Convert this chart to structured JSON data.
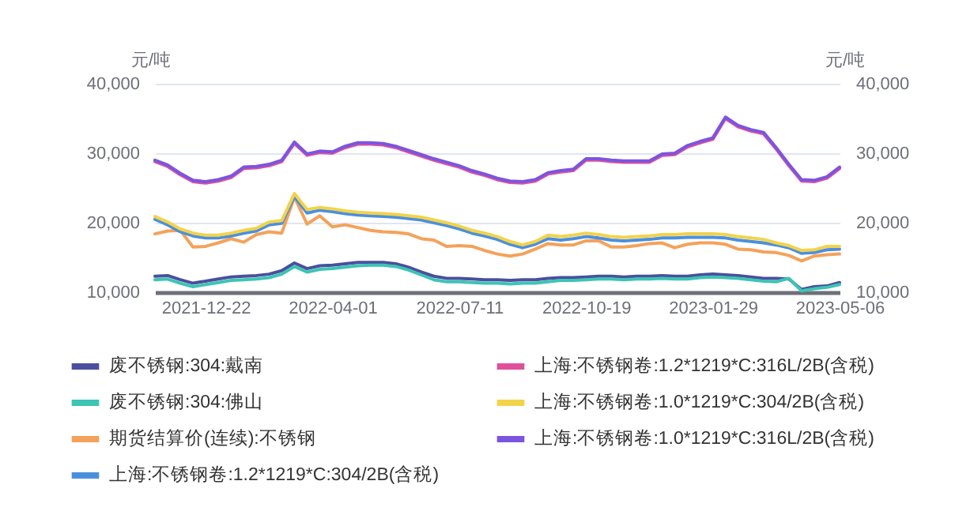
{
  "chart_data": {
    "type": "line",
    "categories": [
      null,
      null,
      null,
      null,
      "2021-12-22",
      null,
      null,
      null,
      null,
      null,
      null,
      null,
      null,
      null,
      "2022-04-01",
      null,
      null,
      null,
      null,
      null,
      null,
      null,
      null,
      null,
      "2022-07-11",
      null,
      null,
      null,
      null,
      null,
      null,
      null,
      null,
      null,
      "2022-10-19",
      null,
      null,
      null,
      null,
      null,
      null,
      null,
      null,
      null,
      "2023-01-29",
      null,
      null,
      null,
      null,
      null,
      null,
      null,
      null,
      null,
      "2023-05-06"
    ],
    "ylabel": "元/吨",
    "y2label": "元/吨",
    "ylim": [
      10000,
      40000
    ],
    "yticks": [
      {
        "value": 10000,
        "label": "10,000"
      },
      {
        "value": 20000,
        "label": "20,000"
      },
      {
        "value": 30000,
        "label": "30,000"
      },
      {
        "value": 40000,
        "label": "40,000"
      }
    ],
    "y2lim": [
      10000,
      40000
    ],
    "y2ticks": [
      {
        "value": 10000,
        "label": "10,000"
      },
      {
        "value": 20000,
        "label": "20,000"
      },
      {
        "value": 30000,
        "label": "30,000"
      },
      {
        "value": 40000,
        "label": "40,000"
      }
    ],
    "grid": "y",
    "legend": "bottom",
    "series": [
      {
        "name": "废不锈钢:304:戴南",
        "color": "#4a4f9e",
        "values": [
          12300,
          12400,
          11800,
          11300,
          11600,
          11900,
          12200,
          12300,
          12400,
          12600,
          13100,
          14200,
          13400,
          13800,
          13900,
          14100,
          14300,
          14300,
          14300,
          14100,
          13600,
          12900,
          12300,
          12000,
          12000,
          11900,
          11800,
          11800,
          11700,
          11800,
          11800,
          12000,
          12100,
          12100,
          12200,
          12300,
          12300,
          12200,
          12300,
          12300,
          12400,
          12300,
          12300,
          12500,
          12600,
          12500,
          12400,
          12200,
          12000,
          12000,
          11900,
          10400,
          10800,
          10900,
          11400
        ]
      },
      {
        "name": "废不锈钢:304:佛山",
        "color": "#3cc4b4",
        "values": [
          11800,
          11900,
          11300,
          10800,
          11100,
          11400,
          11700,
          11800,
          11900,
          12100,
          12600,
          13700,
          12900,
          13300,
          13400,
          13600,
          13800,
          13900,
          13900,
          13700,
          13200,
          12500,
          11800,
          11500,
          11500,
          11400,
          11300,
          11300,
          11200,
          11300,
          11300,
          11500,
          11700,
          11700,
          11800,
          11900,
          11900,
          11800,
          11900,
          11900,
          12000,
          11900,
          11900,
          12100,
          12200,
          12100,
          12000,
          11800,
          11600,
          11500,
          12000,
          10200,
          10500,
          10700,
          11100
        ]
      },
      {
        "name": "期货结算价(连续):不锈钢",
        "color": "#f4a25a",
        "values": [
          18400,
          18800,
          18900,
          16500,
          16600,
          17100,
          17700,
          17200,
          18300,
          18700,
          18500,
          23700,
          19800,
          21000,
          19400,
          19700,
          19300,
          18900,
          18700,
          18600,
          18400,
          17700,
          17500,
          16600,
          16700,
          16600,
          16000,
          15500,
          15200,
          15500,
          16200,
          17000,
          16800,
          16800,
          17400,
          17400,
          16500,
          16500,
          16700,
          17000,
          17100,
          16400,
          16900,
          17100,
          17100,
          16900,
          16200,
          16100,
          15800,
          15700,
          15300,
          14500,
          15200,
          15400,
          15500
        ]
      },
      {
        "name": "上海:不锈钢卷:1.2*1219*C:304/2B(含税)",
        "color": "#4a8fdf",
        "values": [
          20500,
          19700,
          18700,
          18100,
          17800,
          17800,
          18100,
          18500,
          18800,
          19700,
          19900,
          23800,
          21400,
          21800,
          21600,
          21300,
          21100,
          21000,
          20900,
          20800,
          20600,
          20400,
          20000,
          19600,
          19100,
          18500,
          18100,
          17600,
          16900,
          16400,
          16900,
          17700,
          17500,
          17700,
          18000,
          17800,
          17500,
          17400,
          17500,
          17600,
          17800,
          17800,
          17900,
          17900,
          17900,
          17800,
          17500,
          17300,
          17100,
          16800,
          16400,
          15600,
          15700,
          16100,
          16200
        ]
      },
      {
        "name": "上海:不锈钢卷:1.2*1219*C:316L/2B(含税)",
        "color": "#e0509a",
        "values": [
          28800,
          28100,
          26900,
          25900,
          25700,
          26000,
          26500,
          27800,
          27900,
          28200,
          28800,
          31400,
          29700,
          30100,
          30000,
          30800,
          31300,
          31300,
          31200,
          30800,
          30200,
          29600,
          29000,
          28500,
          28000,
          27300,
          26800,
          26200,
          25800,
          25700,
          26000,
          27000,
          27300,
          27500,
          29000,
          29000,
          28800,
          28700,
          28700,
          28700,
          29700,
          29800,
          30900,
          31500,
          32000,
          35000,
          33800,
          33200,
          32800,
          30600,
          28200,
          26000,
          25900,
          26400,
          27800
        ]
      },
      {
        "name": "上海:不锈钢卷:1.0*1219*C:304/2B(含税)",
        "color": "#f2d34a",
        "values": [
          20900,
          20100,
          19100,
          18500,
          18200,
          18200,
          18500,
          18900,
          19200,
          20100,
          20300,
          24200,
          21900,
          22200,
          22000,
          21700,
          21500,
          21400,
          21300,
          21200,
          21000,
          20800,
          20400,
          20000,
          19500,
          18900,
          18500,
          18000,
          17300,
          16800,
          17300,
          18200,
          18000,
          18200,
          18500,
          18300,
          18000,
          17900,
          18000,
          18100,
          18300,
          18300,
          18400,
          18400,
          18400,
          18300,
          18000,
          17800,
          17600,
          17100,
          16700,
          16000,
          16100,
          16600,
          16600
        ]
      },
      {
        "name": "上海:不锈钢卷:1.0*1219*C:316L/2B(含税)",
        "color": "#7b55e0",
        "values": [
          29000,
          28300,
          27100,
          26100,
          25900,
          26200,
          26700,
          28000,
          28100,
          28400,
          29000,
          31600,
          29900,
          30300,
          30200,
          31000,
          31500,
          31500,
          31400,
          31000,
          30400,
          29800,
          29200,
          28700,
          28200,
          27500,
          27000,
          26400,
          26000,
          25900,
          26200,
          27200,
          27500,
          27700,
          29200,
          29200,
          29000,
          28900,
          28900,
          28900,
          29900,
          30000,
          31100,
          31700,
          32200,
          35200,
          34000,
          33400,
          33000,
          30800,
          28400,
          26200,
          26100,
          26600,
          28000
        ]
      }
    ]
  }
}
